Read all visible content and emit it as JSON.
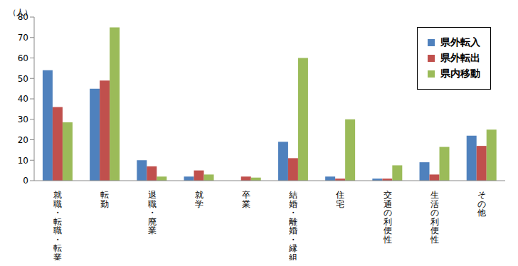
{
  "chart_data": {
    "type": "bar",
    "y_label": "（人）",
    "categories": [
      "就職・転職・転業",
      "転勤",
      "退職・廃業",
      "就学",
      "卒業",
      "結婚・離婚・縁組",
      "住宅",
      "交通の利便性",
      "生活の利便性",
      "その他"
    ],
    "series": [
      {
        "name": "県外転入",
        "color": "#4f81bd",
        "values": [
          54,
          45,
          10,
          2,
          0,
          19,
          2,
          1,
          9,
          22
        ]
      },
      {
        "name": "県外転出",
        "color": "#c0504d",
        "values": [
          36,
          49,
          7,
          5,
          2,
          11,
          1,
          1,
          3,
          17
        ]
      },
      {
        "name": "県内移動",
        "color": "#9bbb59",
        "values": [
          28.5,
          75,
          2,
          3,
          1.5,
          60,
          30,
          7.5,
          16.5,
          25
        ]
      }
    ],
    "ylim": [
      0,
      80
    ],
    "yticks": [
      0,
      10,
      20,
      30,
      40,
      50,
      60,
      70,
      80
    ],
    "grid": false,
    "legend": "upper right"
  }
}
